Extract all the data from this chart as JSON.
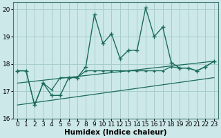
{
  "xlabel": "Humidex (Indice chaleur)",
  "ylabel": "",
  "bg_color": "#cce8e8",
  "grid_color": "#a8cccc",
  "line_color": "#1a6b5a",
  "xlim": [
    -0.5,
    23.5
  ],
  "ylim": [
    16.0,
    20.25
  ],
  "yticks": [
    16,
    17,
    18,
    19,
    20
  ],
  "xticks": [
    0,
    1,
    2,
    3,
    4,
    5,
    6,
    7,
    8,
    9,
    10,
    11,
    12,
    13,
    14,
    15,
    16,
    17,
    18,
    19,
    20,
    21,
    22,
    23
  ],
  "main_x": [
    0,
    1,
    2,
    3,
    4,
    5,
    6,
    7,
    8,
    9,
    10,
    11,
    12,
    13,
    14,
    15,
    16,
    17,
    18,
    19,
    20,
    21,
    22,
    23
  ],
  "main_y": [
    17.75,
    17.75,
    16.5,
    17.3,
    16.85,
    16.85,
    17.5,
    17.5,
    17.9,
    19.8,
    18.75,
    19.1,
    18.2,
    18.5,
    18.5,
    20.05,
    19.0,
    19.35,
    18.05,
    17.85,
    17.85,
    17.75,
    17.9,
    18.1
  ],
  "line2_x": [
    0,
    1,
    2,
    3,
    4,
    5,
    6,
    7,
    8,
    9,
    10,
    11,
    12,
    13,
    14,
    15,
    16,
    17,
    18,
    19,
    20,
    21,
    22,
    23
  ],
  "line2_y": [
    17.75,
    17.75,
    16.5,
    17.3,
    17.05,
    17.5,
    17.5,
    17.5,
    17.75,
    17.75,
    17.75,
    17.75,
    17.75,
    17.75,
    17.75,
    17.75,
    17.75,
    17.75,
    17.9,
    17.85,
    17.85,
    17.75,
    17.9,
    18.1
  ],
  "line3_x": [
    0,
    23
  ],
  "line3_y": [
    17.3,
    18.1
  ],
  "line4_x": [
    0,
    23
  ],
  "line4_y": [
    16.5,
    17.5
  ],
  "tick_fontsize": 6.5,
  "label_fontsize": 7.5
}
